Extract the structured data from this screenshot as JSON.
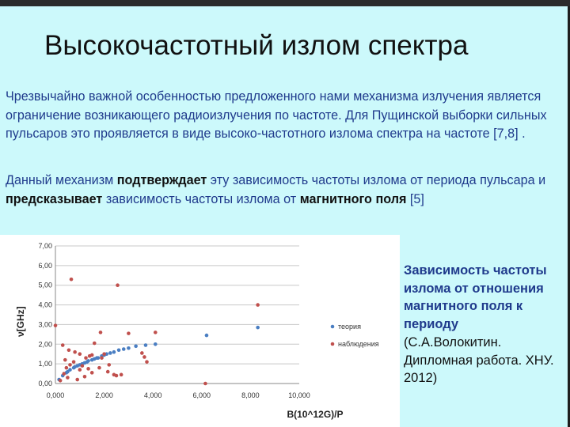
{
  "slide": {
    "title": "Высокочастотный излом спектра",
    "para1": "Чрезвычайно важной особенностью предложенного нами механизма излучения является ограничение возникающего радиоизлучения по частоте. Для Пущинской выборки сильных пульсаров это проявляется в виде высоко-частотного излома спектра на частоте [7,8] .",
    "para2": {
      "t1": "Данный механизм ",
      "b1": "подтверждает",
      "t2": " эту зависимость частоты излома от периода пульсара и ",
      "b2": "предсказывает",
      "t3": " зависимость частоты излома от ",
      "b3": "магнитного поля",
      "t4": " [5]"
    },
    "caption": {
      "bold": "Зависимость частоты излома от отношения магнитного поля к периоду",
      "normal": "(С.А.Волокитин. Дипломная работа. ХНУ. 2012)"
    }
  },
  "colors": {
    "background": "#ccf9fb",
    "text_blue": "#1f3a8c",
    "theory": "#4a7ec2",
    "observation": "#c0504d"
  },
  "chart_data": {
    "type": "scatter",
    "xlabel": "B(10^12G)/P",
    "ylabel": "ν[GHz]",
    "xlim": [
      0,
      10
    ],
    "ylim": [
      0,
      7
    ],
    "x_ticks": [
      "0,000",
      "2,000",
      "4,000",
      "6,000",
      "8,000",
      "10,000"
    ],
    "y_ticks": [
      "0,00",
      "1,00",
      "2,00",
      "3,00",
      "4,00",
      "5,00",
      "6,00",
      "7,00"
    ],
    "grid": true,
    "legend_position": "right",
    "series": [
      {
        "name": "теория",
        "color": "#4a7ec2",
        "points": [
          [
            0.15,
            0.2
          ],
          [
            0.3,
            0.4
          ],
          [
            0.45,
            0.55
          ],
          [
            0.6,
            0.7
          ],
          [
            0.75,
            0.8
          ],
          [
            0.9,
            0.9
          ],
          [
            1.0,
            0.95
          ],
          [
            1.1,
            1.0
          ],
          [
            1.2,
            1.05
          ],
          [
            1.35,
            1.15
          ],
          [
            1.5,
            1.2
          ],
          [
            1.6,
            1.25
          ],
          [
            1.75,
            1.3
          ],
          [
            1.9,
            1.4
          ],
          [
            2.0,
            1.45
          ],
          [
            2.1,
            1.5
          ],
          [
            2.25,
            1.55
          ],
          [
            2.4,
            1.6
          ],
          [
            2.6,
            1.7
          ],
          [
            2.8,
            1.75
          ],
          [
            3.0,
            1.8
          ],
          [
            3.3,
            1.9
          ],
          [
            3.7,
            1.95
          ],
          [
            4.1,
            2.0
          ],
          [
            6.2,
            2.45
          ],
          [
            8.3,
            2.85
          ],
          [
            0.5,
            0.6
          ],
          [
            0.8,
            0.85
          ],
          [
            1.3,
            1.1
          ],
          [
            1.7,
            1.3
          ]
        ]
      },
      {
        "name": "наблюдения",
        "color": "#c0504d",
        "points": [
          [
            0.0,
            2.95
          ],
          [
            0.65,
            5.3
          ],
          [
            2.55,
            5.0
          ],
          [
            8.3,
            4.0
          ],
          [
            1.85,
            2.6
          ],
          [
            4.1,
            2.6
          ],
          [
            3.0,
            2.55
          ],
          [
            0.3,
            1.95
          ],
          [
            0.55,
            1.7
          ],
          [
            0.8,
            1.6
          ],
          [
            1.0,
            1.5
          ],
          [
            1.25,
            1.3
          ],
          [
            1.4,
            1.4
          ],
          [
            1.5,
            1.45
          ],
          [
            1.9,
            1.3
          ],
          [
            2.0,
            1.5
          ],
          [
            1.6,
            2.05
          ],
          [
            3.55,
            1.55
          ],
          [
            3.65,
            1.35
          ],
          [
            3.75,
            1.1
          ],
          [
            0.4,
            1.2
          ],
          [
            0.6,
            0.95
          ],
          [
            0.75,
            1.1
          ],
          [
            1.1,
            0.9
          ],
          [
            1.35,
            0.75
          ],
          [
            1.5,
            0.55
          ],
          [
            2.15,
            0.6
          ],
          [
            2.4,
            0.45
          ],
          [
            2.5,
            0.4
          ],
          [
            0.35,
            0.5
          ],
          [
            0.5,
            0.3
          ],
          [
            0.2,
            0.15
          ],
          [
            0.9,
            0.2
          ],
          [
            1.8,
            0.8
          ],
          [
            2.2,
            0.95
          ],
          [
            1.2,
            0.35
          ],
          [
            6.15,
            0.0
          ],
          [
            0.45,
            0.8
          ],
          [
            1.0,
            0.7
          ],
          [
            2.7,
            0.45
          ]
        ]
      }
    ]
  }
}
